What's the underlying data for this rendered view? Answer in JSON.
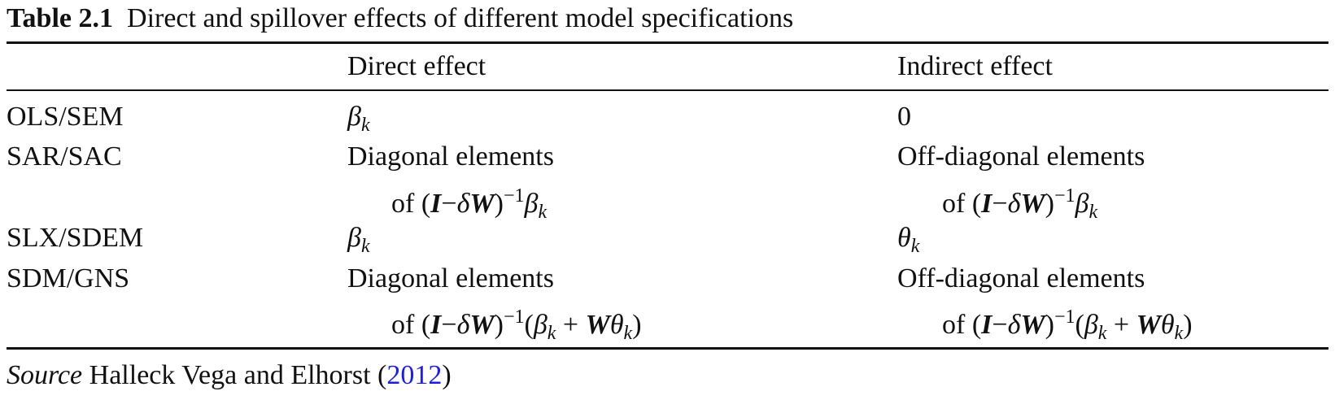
{
  "caption": {
    "label": "Table 2.1",
    "text": "Direct and spillover effects of different model specifications"
  },
  "table": {
    "header": [
      "Direct effect",
      "Indirect effect"
    ],
    "rows": [
      {
        "label": "OLS/SEM",
        "direct": [
          [
            "β",
            "k"
          ]
        ],
        "indirect": [
          "0"
        ]
      },
      {
        "label": "SAR/SAC",
        "direct": [
          "Diagonal elements",
          [
            "of (",
            "I",
            "−",
            "δ",
            "W",
            ")",
            "−1",
            "β",
            "k"
          ]
        ],
        "indirect": [
          "Off-diagonal elements",
          [
            "of (",
            "I",
            "−",
            "δ",
            "W",
            ")",
            "−1",
            "β",
            "k"
          ]
        ]
      },
      {
        "label": "SLX/SDEM",
        "direct": [
          [
            "β",
            "k"
          ]
        ],
        "indirect": [
          [
            "θ",
            "k"
          ]
        ]
      },
      {
        "label": "SDM/GNS",
        "direct": [
          "Diagonal elements",
          [
            "of (",
            "I",
            "−",
            "δ",
            "W",
            ")",
            "−1",
            "(",
            "β",
            "k",
            " + ",
            "W",
            "θ",
            "k",
            ")"
          ]
        ],
        "indirect": [
          "Off-diagonal elements",
          [
            "of (",
            "I",
            "−",
            "δ",
            "W",
            ")",
            "−1",
            "(",
            "β",
            "k",
            " + ",
            "W",
            "θ",
            "k",
            ")"
          ]
        ]
      }
    ]
  },
  "source": {
    "label": "Source",
    "text": "Halleck Vega and Elhorst (",
    "year": "2012",
    "close": ")"
  }
}
